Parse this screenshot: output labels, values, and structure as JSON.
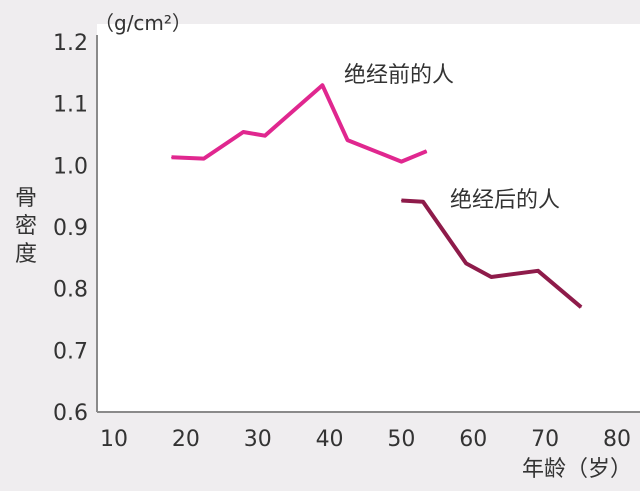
{
  "chart_data": {
    "type": "line",
    "y_unit": "（g/cm²）",
    "ylabel": "骨密度",
    "xlabel": "年龄（岁）",
    "xlim": [
      10,
      80
    ],
    "ylim": [
      0.6,
      1.2
    ],
    "x_ticks": [
      "10",
      "20",
      "30",
      "40",
      "50",
      "60",
      "70",
      "80"
    ],
    "y_ticks": [
      "0.6",
      "0.7",
      "0.8",
      "0.9",
      "1.0",
      "1.1",
      "1.2"
    ],
    "grid": false,
    "series": [
      {
        "name": "绝经前的人",
        "color": "#e0278f",
        "x": [
          18,
          22.5,
          28,
          31,
          39,
          42.5,
          50,
          53.5
        ],
        "y": [
          1.013,
          1.011,
          1.054,
          1.048,
          1.13,
          1.041,
          1.006,
          1.023
        ]
      },
      {
        "name": "绝经后的人",
        "color": "#8e1b4a",
        "x": [
          50,
          53,
          59,
          62.5,
          69,
          75
        ],
        "y": [
          0.943,
          0.941,
          0.841,
          0.819,
          0.829,
          0.77
        ]
      }
    ]
  }
}
